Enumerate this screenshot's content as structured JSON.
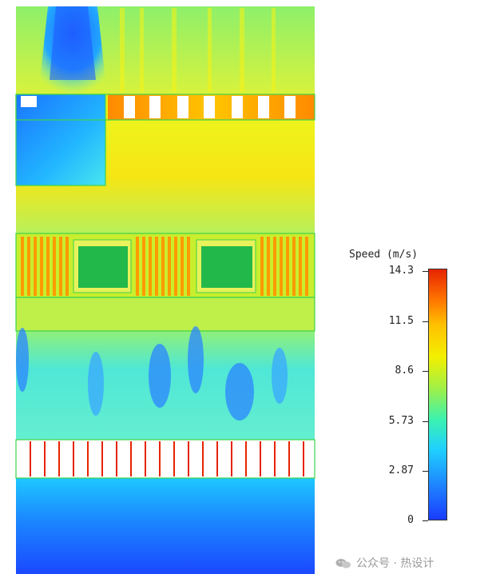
{
  "legend": {
    "title": "Speed (m/s)",
    "ticks": [
      "14.3",
      "11.5",
      "8.6",
      "5.73",
      "2.87",
      "0"
    ],
    "max": 14.3,
    "min": 0,
    "colors": [
      "#1a3cff",
      "#1fd0ff",
      "#9cf04a",
      "#f3f000",
      "#ff7400",
      "#e62400"
    ]
  },
  "watermark": {
    "text": "公众号 · 热设计",
    "icon": "wechat-icon"
  }
}
